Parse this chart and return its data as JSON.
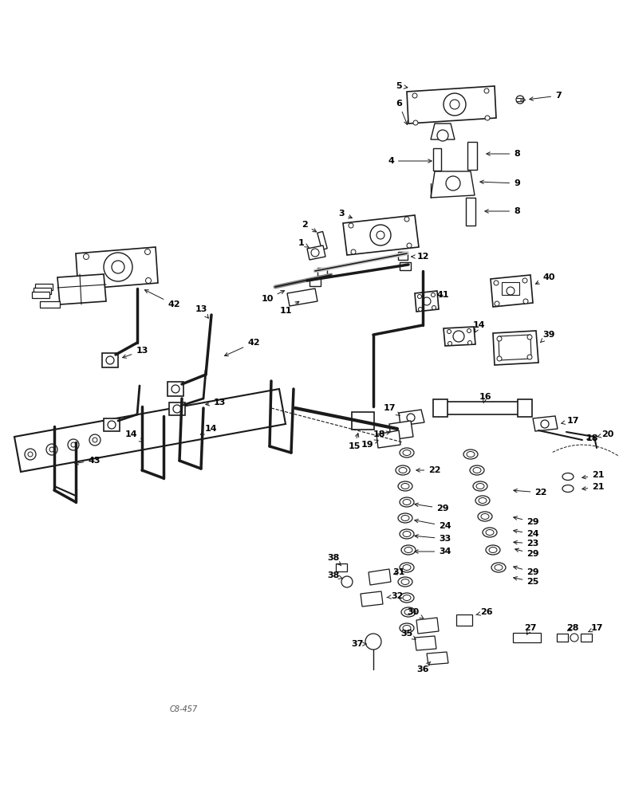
{
  "background_color": "#ffffff",
  "line_color": "#1a1a1a",
  "text_color": "#000000",
  "figsize": [
    7.76,
    10.0
  ],
  "dpi": 100,
  "watermark": "C8-457"
}
